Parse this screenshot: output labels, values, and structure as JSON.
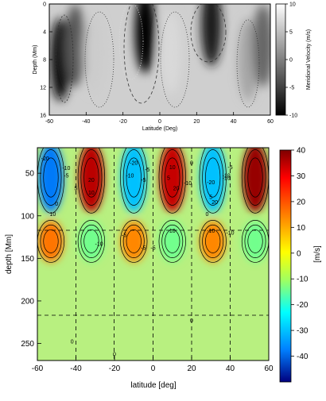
{
  "chart_data": [
    {
      "type": "heatmap",
      "title": "",
      "xlabel": "Latitude (Deg)",
      "ylabel": "Depth (Mm)",
      "colorbar_label": "Meridional Velocity (m/s)",
      "xlim": [
        -60,
        60
      ],
      "ylim": [
        0,
        16
      ],
      "y_inverted": true,
      "xticks": [
        "-60",
        "-40",
        "-20",
        "0",
        "20",
        "40",
        "60"
      ],
      "yticks": [
        "0",
        "4",
        "8",
        "12",
        "16"
      ],
      "colorbar_ticks": [
        "10",
        "5",
        "0",
        "-5",
        "-10"
      ],
      "colorbar_range": [
        -10,
        10
      ],
      "colormap": "grayscale",
      "cells": [
        {
          "x": -54,
          "depth": 8,
          "value": -9
        },
        {
          "x": -46,
          "depth": 6,
          "value": -3
        },
        {
          "x": -36,
          "depth": 7,
          "value": 6
        },
        {
          "x": -8,
          "depth": 4,
          "value": -10
        },
        {
          "x": 6,
          "depth": 7,
          "value": 7
        },
        {
          "x": 28,
          "depth": 3,
          "value": -8
        },
        {
          "x": 48,
          "depth": 8,
          "value": 3
        },
        {
          "x": 56,
          "depth": 6,
          "value": -2
        }
      ]
    },
    {
      "type": "heatmap",
      "title": "",
      "xlabel": "latitude [deg]",
      "ylabel": "depth [Mm]",
      "colorbar_label": "[m/s]",
      "xlim": [
        -60,
        60
      ],
      "ylim": [
        20,
        270
      ],
      "y_inverted": true,
      "xticks": [
        "-60",
        "-40",
        "-20",
        "0",
        "20",
        "40",
        "60"
      ],
      "yticks": [
        "50",
        "100",
        "150",
        "200",
        "250"
      ],
      "colorbar_ticks": [
        "40",
        "30",
        "20",
        "10",
        "0",
        "-10",
        "-20",
        "-30",
        "-40"
      ],
      "colorbar_range": [
        -50,
        40
      ],
      "colormap": "jet",
      "cells": [
        {
          "x": -53,
          "depth": 55,
          "value": -38
        },
        {
          "x": -32,
          "depth": 55,
          "value": 35
        },
        {
          "x": -10,
          "depth": 55,
          "value": -30
        },
        {
          "x": 10,
          "depth": 55,
          "value": 34
        },
        {
          "x": 31,
          "depth": 55,
          "value": -30
        },
        {
          "x": 53,
          "depth": 55,
          "value": 38
        },
        {
          "x": -53,
          "depth": 130,
          "value": 16
        },
        {
          "x": -32,
          "depth": 130,
          "value": -14
        },
        {
          "x": -10,
          "depth": 130,
          "value": 14
        },
        {
          "x": 10,
          "depth": 130,
          "value": -14
        },
        {
          "x": 31,
          "depth": 130,
          "value": 14
        },
        {
          "x": 53,
          "depth": 130,
          "value": -14
        }
      ],
      "contour_labels": [
        "-20",
        "-10",
        "-5",
        "20",
        "10",
        "5",
        "0",
        "-20",
        "-10",
        "-5",
        "10",
        "5",
        "20",
        "0",
        "-5",
        "-10",
        "-20",
        "-10",
        "5",
        "20",
        "-5",
        "-10",
        "0",
        "10",
        "-5",
        "-10",
        "-5",
        "10",
        "-5",
        "-10",
        "-10",
        "0",
        "0",
        "0"
      ]
    }
  ]
}
